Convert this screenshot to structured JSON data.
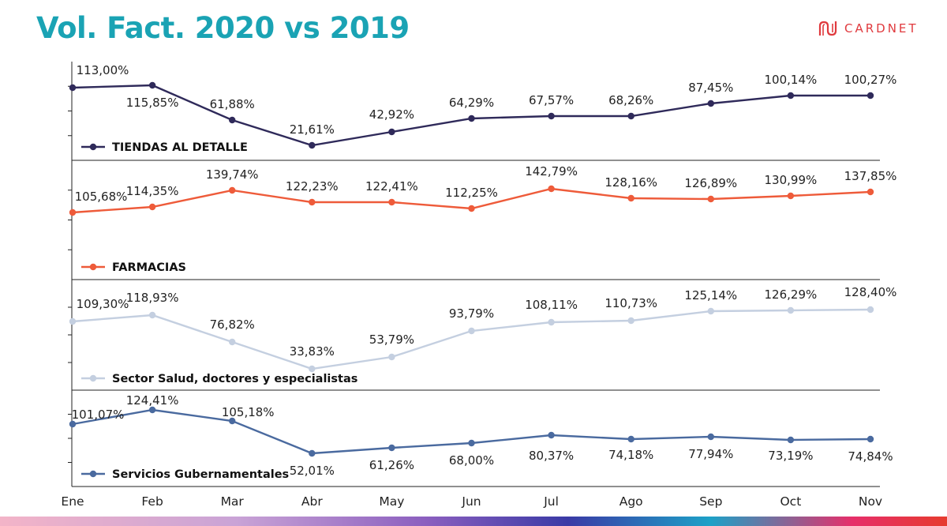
{
  "title": "Vol. Fact. 2020 vs 2019",
  "logo": {
    "text": "CARDNET",
    "icon": "cardnet-logo-icon"
  },
  "colors": {
    "tiendas": "#2f2a5a",
    "farmacias": "#ee5b3a",
    "salud": "#c4cfe0",
    "servicios": "#4a6a9f",
    "title": "#1aa3b4",
    "axis": "#222222"
  },
  "chart_data": {
    "type": "line",
    "categories": [
      "Ene",
      "Feb",
      "Mar",
      "Abr",
      "May",
      "Jun",
      "Jul",
      "Ago",
      "Sep",
      "Oct",
      "Nov"
    ],
    "grid": false,
    "legend_position": "bottom-left of each panel",
    "series": [
      {
        "name": "TIENDAS AL DETALLE",
        "values": [
          113.0,
          115.85,
          61.88,
          21.61,
          42.92,
          64.29,
          67.57,
          68.26,
          87.45,
          100.14,
          100.27
        ],
        "labels": [
          "113,00%",
          "115,85%",
          "61,88%",
          "21,61%",
          "42,92%",
          "64,29%",
          "67,57%",
          "68,26%",
          "87,45%",
          "100,14%",
          "100,27%"
        ]
      },
      {
        "name": "FARMACIAS",
        "values": [
          105.68,
          114.35,
          139.74,
          122.23,
          122.41,
          112.25,
          142.79,
          128.16,
          126.89,
          130.99,
          137.85
        ],
        "labels": [
          "105,68%",
          "114,35%",
          "139,74%",
          "122,23%",
          "122,41%",
          "112,25%",
          "142,79%",
          "128,16%",
          "126,89%",
          "130,99%",
          "137,85%"
        ]
      },
      {
        "name": "Sector Salud, doctores y especialistas",
        "values": [
          109.3,
          118.93,
          76.82,
          33.83,
          53.79,
          93.79,
          108.11,
          110.73,
          125.14,
          126.29,
          128.4
        ],
        "labels": [
          "109,30%",
          "118,93%",
          "76,82%",
          "33,83%",
          "53,79%",
          "93,79%",
          "108,11%",
          "110,73%",
          "125,14%",
          "126,29%",
          "128,40%"
        ]
      },
      {
        "name": "Servicios Gubernamentales",
        "values": [
          101.07,
          124.41,
          105.18,
          52.01,
          61.26,
          68.0,
          80.37,
          74.18,
          77.94,
          73.19,
          74.84
        ],
        "labels": [
          "101,07%",
          "124,41%",
          "105,18%",
          "52,01%",
          "61,26%",
          "68,00%",
          "80,37%",
          "74,18%",
          "77,94%",
          "73,19%",
          "74,84%"
        ]
      }
    ]
  }
}
